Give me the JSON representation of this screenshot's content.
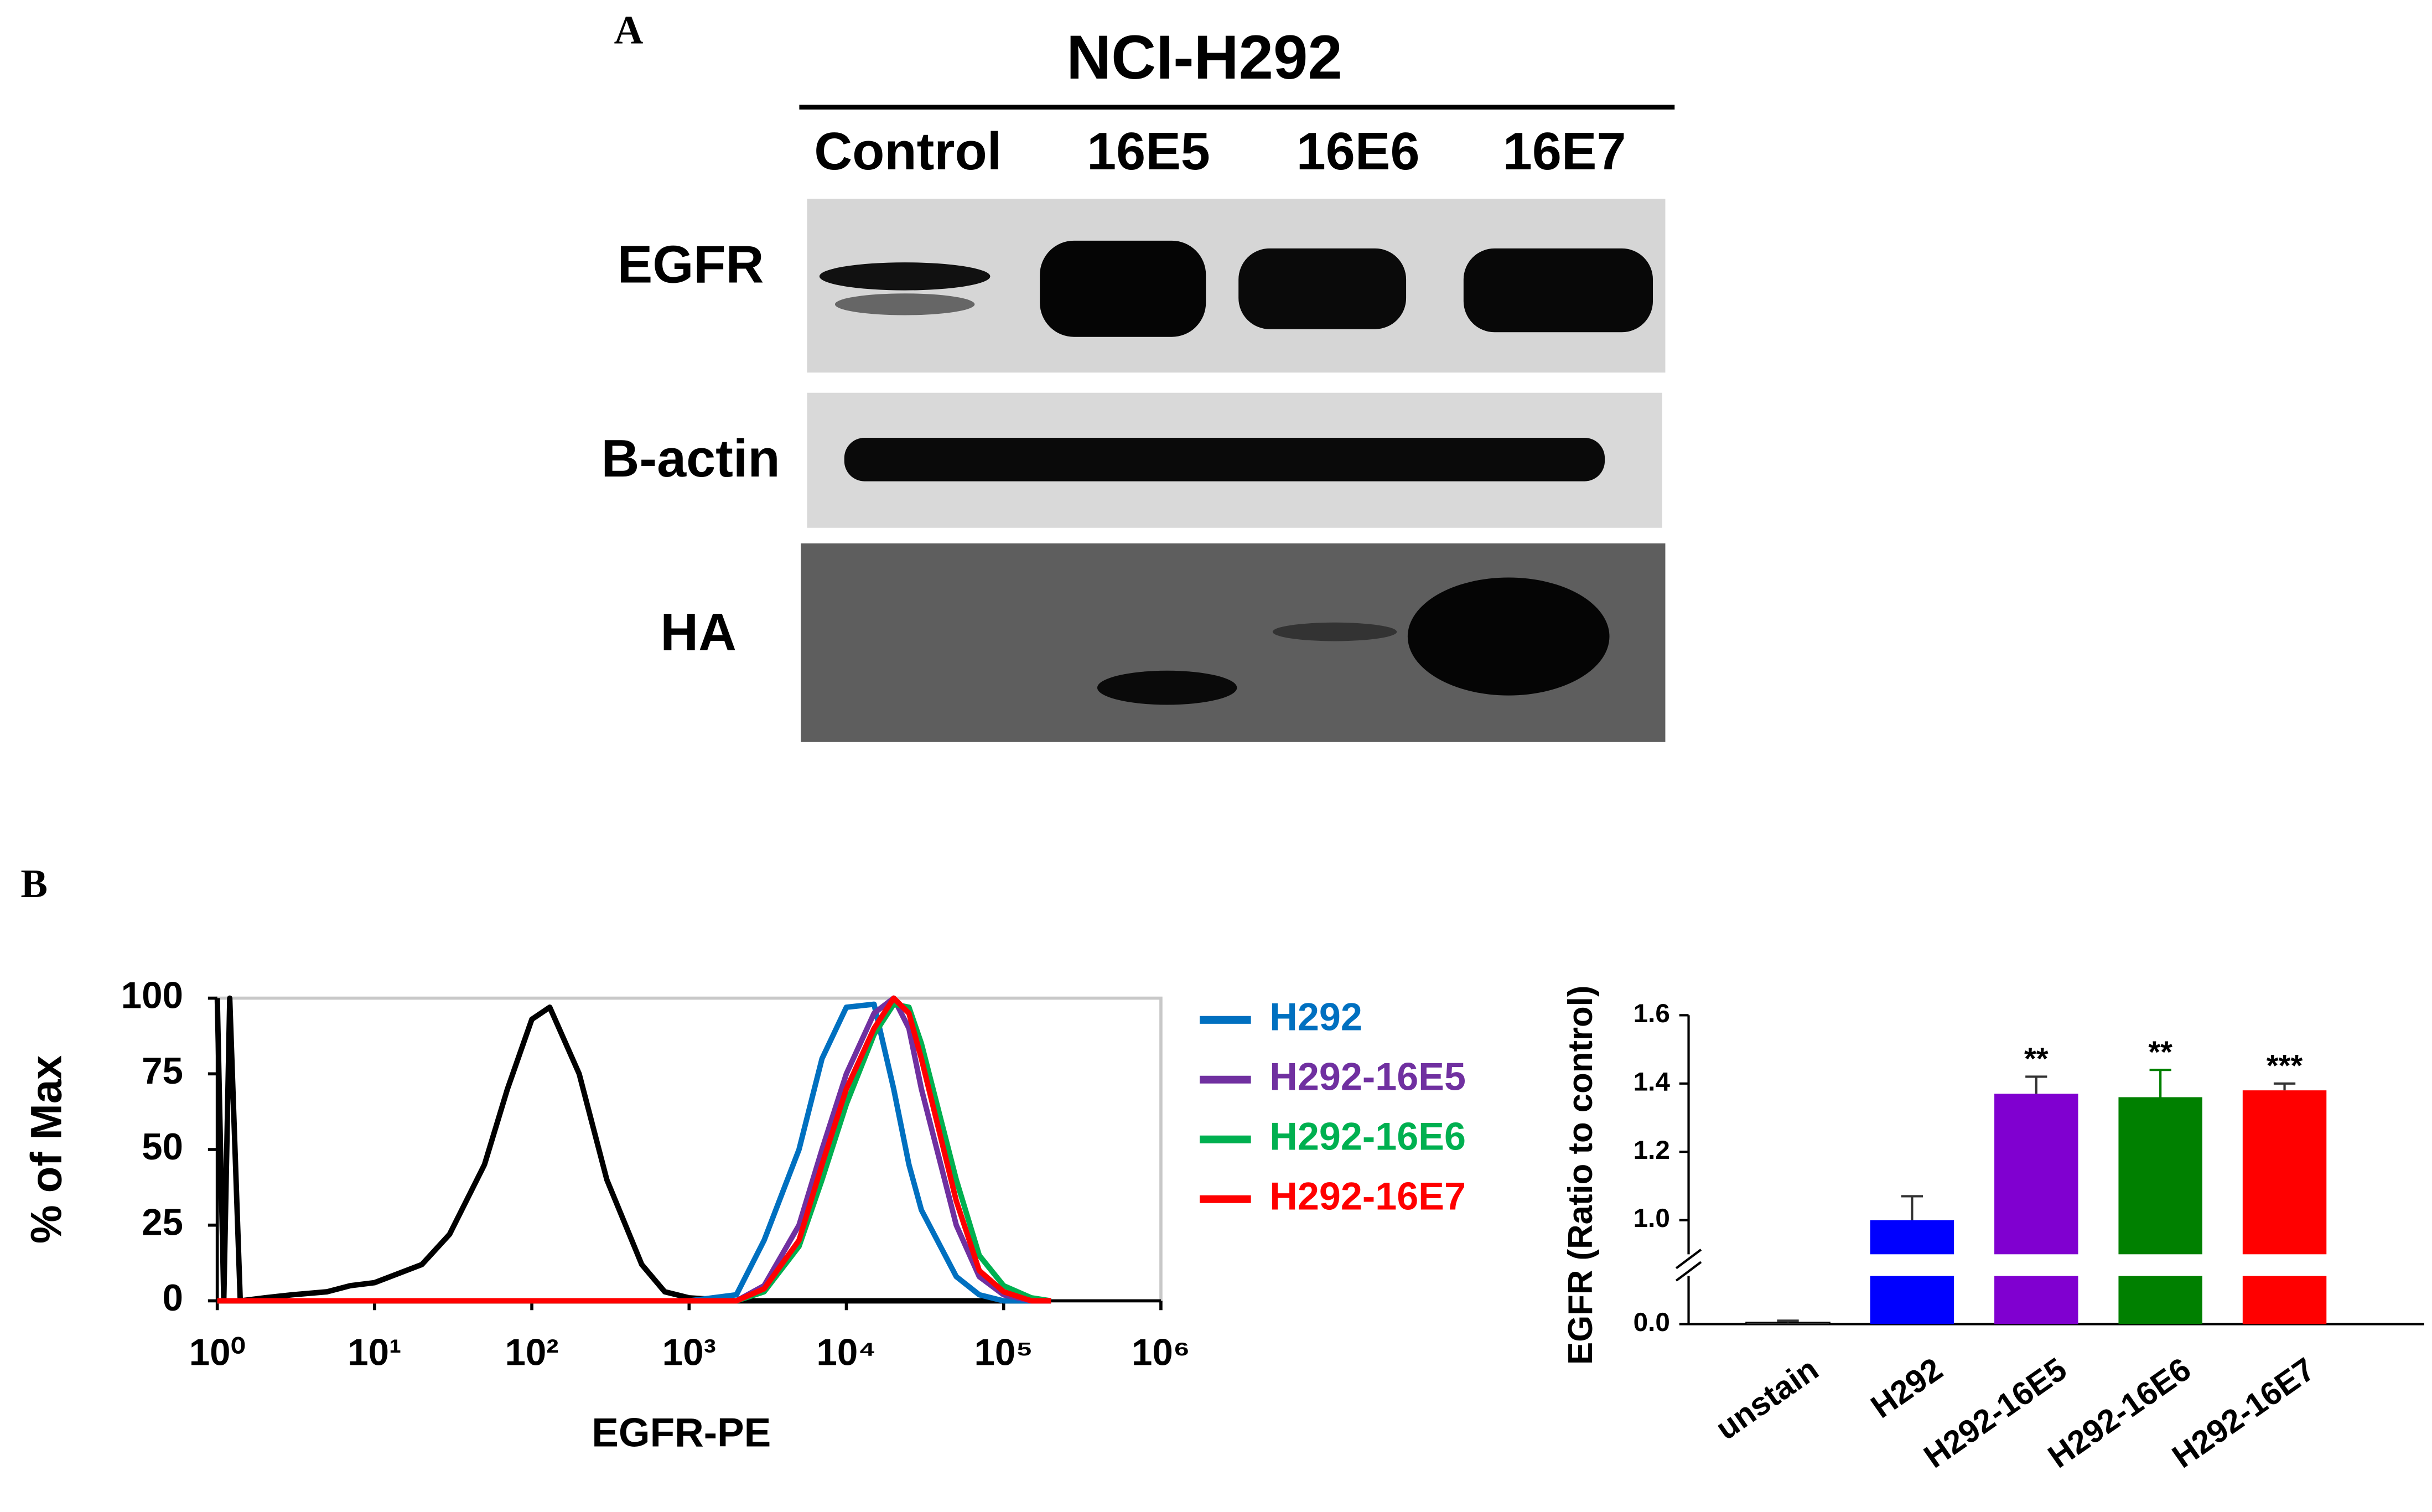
{
  "panel_a": {
    "label": "A",
    "title": "NCI-H292",
    "lanes": [
      "Control",
      "16E5",
      "16E6",
      "16E7"
    ],
    "rows": [
      "EGFR",
      "B-actin",
      "HA"
    ]
  },
  "panel_b": {
    "label": "B"
  },
  "chart_data": [
    {
      "type": "line",
      "x_label": "EGFR-PE",
      "y_label": "% of Max",
      "x_log": true,
      "legend": "right",
      "x": [
        1,
        1.1,
        1.2,
        1.4,
        2,
        3,
        5,
        7,
        10,
        20,
        30,
        50,
        70,
        100,
        130,
        200,
        300,
        500,
        700,
        1000,
        2000,
        3000,
        5000,
        7000,
        10000,
        15000,
        20000,
        25000,
        30000,
        50000,
        70000,
        100000,
        150000,
        200000
      ],
      "xlim": [
        1,
        1000000
      ],
      "xticks": [
        {
          "value": 1,
          "label": "10⁰"
        },
        {
          "value": 10,
          "label": "10¹"
        },
        {
          "value": 100,
          "label": "10²"
        },
        {
          "value": 1000,
          "label": "10³"
        },
        {
          "value": 10000,
          "label": "10⁴"
        },
        {
          "value": 100000,
          "label": "10⁵"
        },
        {
          "value": 1000000,
          "label": "10⁶"
        }
      ],
      "ylim": [
        0,
        100
      ],
      "yticks": [
        0,
        25,
        50,
        75,
        100
      ],
      "series": [
        {
          "color": "#000000",
          "values": [
            100,
            0,
            100,
            0,
            1,
            2,
            3,
            5,
            6,
            12,
            22,
            45,
            70,
            93,
            97,
            75,
            40,
            12,
            3,
            1,
            0,
            0,
            0,
            0,
            0,
            0,
            0,
            0,
            0,
            0,
            0,
            0,
            0,
            0
          ]
        },
        {
          "name": "H292",
          "color": "#0070c0",
          "values": [
            0,
            0,
            0,
            0,
            0,
            0,
            0,
            0,
            0,
            0,
            0,
            0,
            0,
            0,
            0,
            0,
            0,
            0,
            0,
            0,
            2,
            20,
            50,
            80,
            97,
            98,
            70,
            45,
            30,
            8,
            2,
            0,
            0,
            0
          ]
        },
        {
          "name": "H292-16E5",
          "color": "#7030a0",
          "values": [
            0,
            0,
            0,
            0,
            0,
            0,
            0,
            0,
            0,
            0,
            0,
            0,
            0,
            0,
            0,
            0,
            0,
            0,
            0,
            0,
            0,
            5,
            25,
            50,
            75,
            95,
            100,
            90,
            70,
            25,
            8,
            2,
            0,
            0
          ]
        },
        {
          "name": "H292-16E6",
          "color": "#00b050",
          "values": [
            0,
            0,
            0,
            0,
            0,
            0,
            0,
            0,
            0,
            0,
            0,
            0,
            0,
            0,
            0,
            0,
            0,
            0,
            0,
            0,
            0,
            3,
            18,
            40,
            65,
            88,
            98,
            97,
            85,
            40,
            15,
            5,
            1,
            0
          ]
        },
        {
          "name": "H292-16E7",
          "color": "#ff0000",
          "values": [
            0,
            0,
            0,
            0,
            0,
            0,
            0,
            0,
            0,
            0,
            0,
            0,
            0,
            0,
            0,
            0,
            0,
            0,
            0,
            0,
            0,
            4,
            20,
            45,
            70,
            90,
            100,
            95,
            80,
            33,
            10,
            3,
            0,
            0
          ]
        }
      ]
    },
    {
      "type": "bar",
      "y_label": "EGFR (Ratio to control)",
      "categories": [
        "unstain",
        "H292",
        "H292-16E5",
        "H292-16E6",
        "H292-16E7"
      ],
      "values": [
        0.005,
        1.0,
        1.37,
        1.36,
        1.38
      ],
      "errors": [
        0.005,
        0.07,
        0.05,
        0.08,
        0.02
      ],
      "colors": [
        "#808080",
        "#0000ff",
        "#8000d0",
        "#008000",
        "#ff0000"
      ],
      "annotations": [
        null,
        null,
        "**",
        "**",
        "***"
      ],
      "ylim": [
        0,
        1.6
      ],
      "ybreak": [
        0.14,
        0.9
      ],
      "yticks": [
        {
          "value": 0,
          "label": "0.0"
        },
        {
          "value": 1,
          "label": "1.0"
        },
        1.2,
        1.4,
        1.6
      ]
    }
  ]
}
